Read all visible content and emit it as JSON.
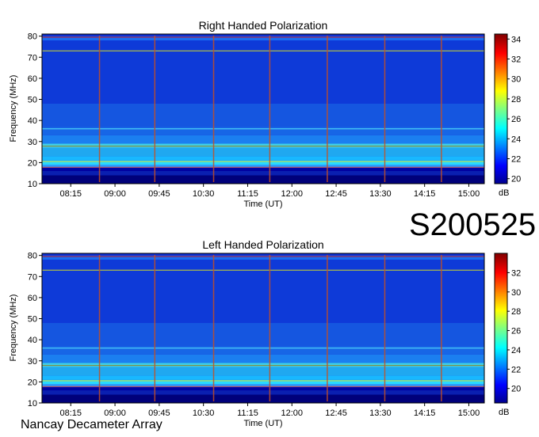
{
  "obs_code": "S200525",
  "instrument": "Nancay Decameter Array",
  "chart_data": [
    {
      "type": "heatmap",
      "title": "Right Handed Polarization",
      "xlabel": "Time (UT)",
      "ylabel": "Frequency (MHz)",
      "xticks": [
        "08:15",
        "09:00",
        "09:45",
        "10:30",
        "11:15",
        "12:00",
        "12:45",
        "13:30",
        "14:15",
        "15:00"
      ],
      "yticks": [
        10,
        20,
        30,
        40,
        50,
        60,
        70,
        80
      ],
      "ylim": [
        10,
        81
      ],
      "colorbar": {
        "label": "dB",
        "range": [
          19.5,
          34.5
        ],
        "ticks": [
          20,
          22,
          24,
          26,
          28,
          30,
          32,
          34
        ]
      }
    },
    {
      "type": "heatmap",
      "title": "Left Handed Polarization",
      "xlabel": "Time (UT)",
      "ylabel": "Frequency (MHz)",
      "xticks": [
        "08:15",
        "09:00",
        "09:45",
        "10:30",
        "11:15",
        "12:00",
        "12:45",
        "13:30",
        "14:15",
        "15:00"
      ],
      "yticks": [
        10,
        20,
        30,
        40,
        50,
        60,
        70,
        80
      ],
      "ylim": [
        10,
        81
      ],
      "colorbar": {
        "label": "dB",
        "range": [
          18.5,
          34
        ],
        "ticks": [
          20,
          22,
          24,
          26,
          28,
          30,
          32
        ]
      }
    }
  ]
}
